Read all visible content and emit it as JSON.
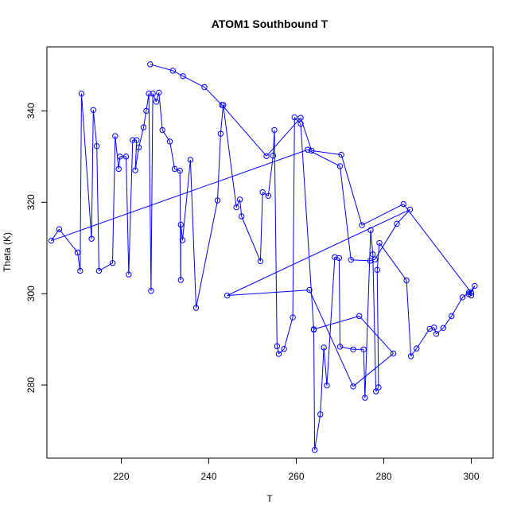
{
  "chart_data": {
    "type": "line",
    "title": "ATOM1 Southbound T",
    "xlabel": "T",
    "ylabel": "Theta (K)",
    "xlim": [
      203.0,
      305.0
    ],
    "ylim": [
      264.0,
      354.0
    ],
    "xticks": [
      220,
      240,
      260,
      280,
      300
    ],
    "yticks": [
      280,
      300,
      320,
      340
    ],
    "grid": false,
    "color": "#0000ff",
    "markers": "open-circle",
    "series": [
      {
        "x": [
          226.6,
          231.8,
          234.1,
          239.0,
          243.0,
          253.2,
          261.0,
          263.5,
          270.3,
          275.0,
          284.5,
          300.0,
          300.8,
          299.4,
          300.0,
          299.5,
          298.0,
          295.5,
          293.6,
          292.0,
          291.5,
          290.5,
          287.5,
          286.2,
          285.2,
          279.0,
          278.5,
          278.8,
          278.2,
          277.5,
          277.0,
          275.7,
          275.4,
          273.0,
          270.0,
          269.8,
          268.8,
          267.0,
          266.3,
          265.5,
          264.2,
          264.0,
          261.0,
          259.6,
          259.2,
          257.2,
          256.0,
          255.6,
          255.0,
          254.7,
          253.6,
          252.3,
          251.8,
          247.5,
          247.1,
          246.3,
          243.3,
          242.7,
          242.0,
          237.1,
          235.8,
          234.0,
          233.6,
          233.6,
          233.4,
          232.2,
          231.1,
          229.4,
          228.6,
          228.0,
          227.2,
          226.8,
          226.3,
          225.7,
          225.1,
          224.0,
          223.2,
          223.5,
          222.6,
          221.7,
          221.1,
          219.7,
          219.4,
          218.6,
          218.0,
          214.9,
          214.4,
          213.6,
          213.2,
          210.9,
          210.6,
          210.0,
          205.8,
          204.0,
          262.6,
          270.0,
          272.5,
          276.9,
          278.0,
          283.0,
          286.0,
          244.2,
          263.0,
          273.0,
          282.2,
          274.4,
          264.0
        ],
        "y": [
          350.2,
          348.8,
          347.6,
          345.2,
          341.3,
          330.1,
          338.5,
          331.3,
          330.4,
          315.0,
          319.6,
          300.2,
          301.7,
          299.9,
          299.6,
          300.3,
          299.2,
          295.1,
          292.5,
          291.2,
          292.6,
          292.3,
          288.0,
          286.3,
          302.9,
          311.1,
          305.2,
          279.5,
          278.6,
          308.6,
          313.9,
          277.2,
          287.8,
          287.8,
          288.4,
          307.8,
          308.0,
          279.9,
          288.2,
          273.6,
          265.8,
          292.1,
          337.2,
          338.6,
          294.8,
          287.9,
          286.8,
          288.5,
          335.8,
          330.2,
          321.4,
          322.2,
          307.1,
          316.9,
          320.6,
          318.9,
          341.3,
          335.0,
          320.4,
          296.9,
          329.3,
          311.7,
          315.1,
          303.0,
          326.9,
          327.3,
          333.3,
          335.8,
          344.0,
          342.0,
          343.8,
          300.6,
          343.8,
          340.0,
          336.4,
          332.0,
          327.0,
          333.6,
          333.6,
          304.2,
          330.0,
          330.0,
          327.3,
          334.5,
          306.7,
          305.0,
          332.3,
          340.2,
          312.0,
          343.8,
          305.0,
          309.0,
          314.1,
          311.6,
          331.5,
          327.9,
          307.4,
          307.2,
          307.5,
          315.3,
          318.4,
          299.6,
          300.8,
          279.7,
          286.9,
          295.1,
          292.2
        ]
      }
    ]
  }
}
